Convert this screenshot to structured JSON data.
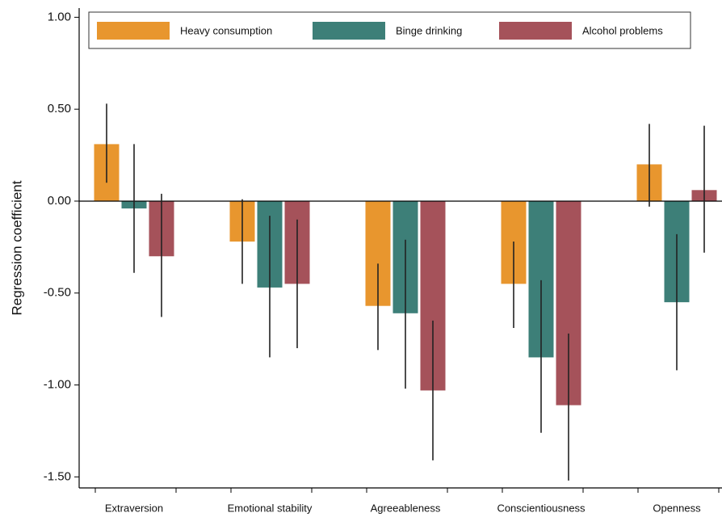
{
  "chart_data": {
    "type": "bar",
    "y_label": "Regression coefficient",
    "categories": [
      "Extraversion",
      "Emotional stability",
      "Agreeableness",
      "Conscientiousness",
      "Openness"
    ],
    "series": [
      {
        "name": "Heavy consumption",
        "color": "#e8962e",
        "values": [
          0.31,
          -0.22,
          -0.57,
          -0.45,
          0.2
        ],
        "ci_low": [
          0.1,
          -0.45,
          -0.81,
          -0.69,
          -0.03
        ],
        "ci_high": [
          0.53,
          0.01,
          -0.34,
          -0.22,
          0.42
        ]
      },
      {
        "name": "Binge drinking",
        "color": "#3d7f78",
        "values": [
          -0.04,
          -0.47,
          -0.61,
          -0.85,
          -0.55
        ],
        "ci_low": [
          -0.39,
          -0.85,
          -1.02,
          -1.26,
          -0.92
        ],
        "ci_high": [
          0.31,
          -0.08,
          -0.21,
          -0.43,
          -0.18
        ]
      },
      {
        "name": "Alcohol problems",
        "color": "#a5525a",
        "values": [
          -0.3,
          -0.45,
          -1.03,
          -1.11,
          0.06
        ],
        "ci_low": [
          -0.63,
          -0.8,
          -1.41,
          -1.52,
          -0.28
        ],
        "ci_high": [
          0.04,
          -0.1,
          -0.65,
          -0.72,
          0.41
        ]
      }
    ],
    "ylim": [
      -1.56,
      1.05
    ],
    "yticks": [
      {
        "value": -1.5,
        "label": "-1.50"
      },
      {
        "value": -1,
        "label": "-1.00"
      },
      {
        "value": -0.5,
        "label": "-0.50"
      },
      {
        "value": 0,
        "label": "0.00"
      },
      {
        "value": 0.5,
        "label": "0.50"
      },
      {
        "value": 1,
        "label": "1.00"
      }
    ],
    "grid": false,
    "legend": "top"
  }
}
